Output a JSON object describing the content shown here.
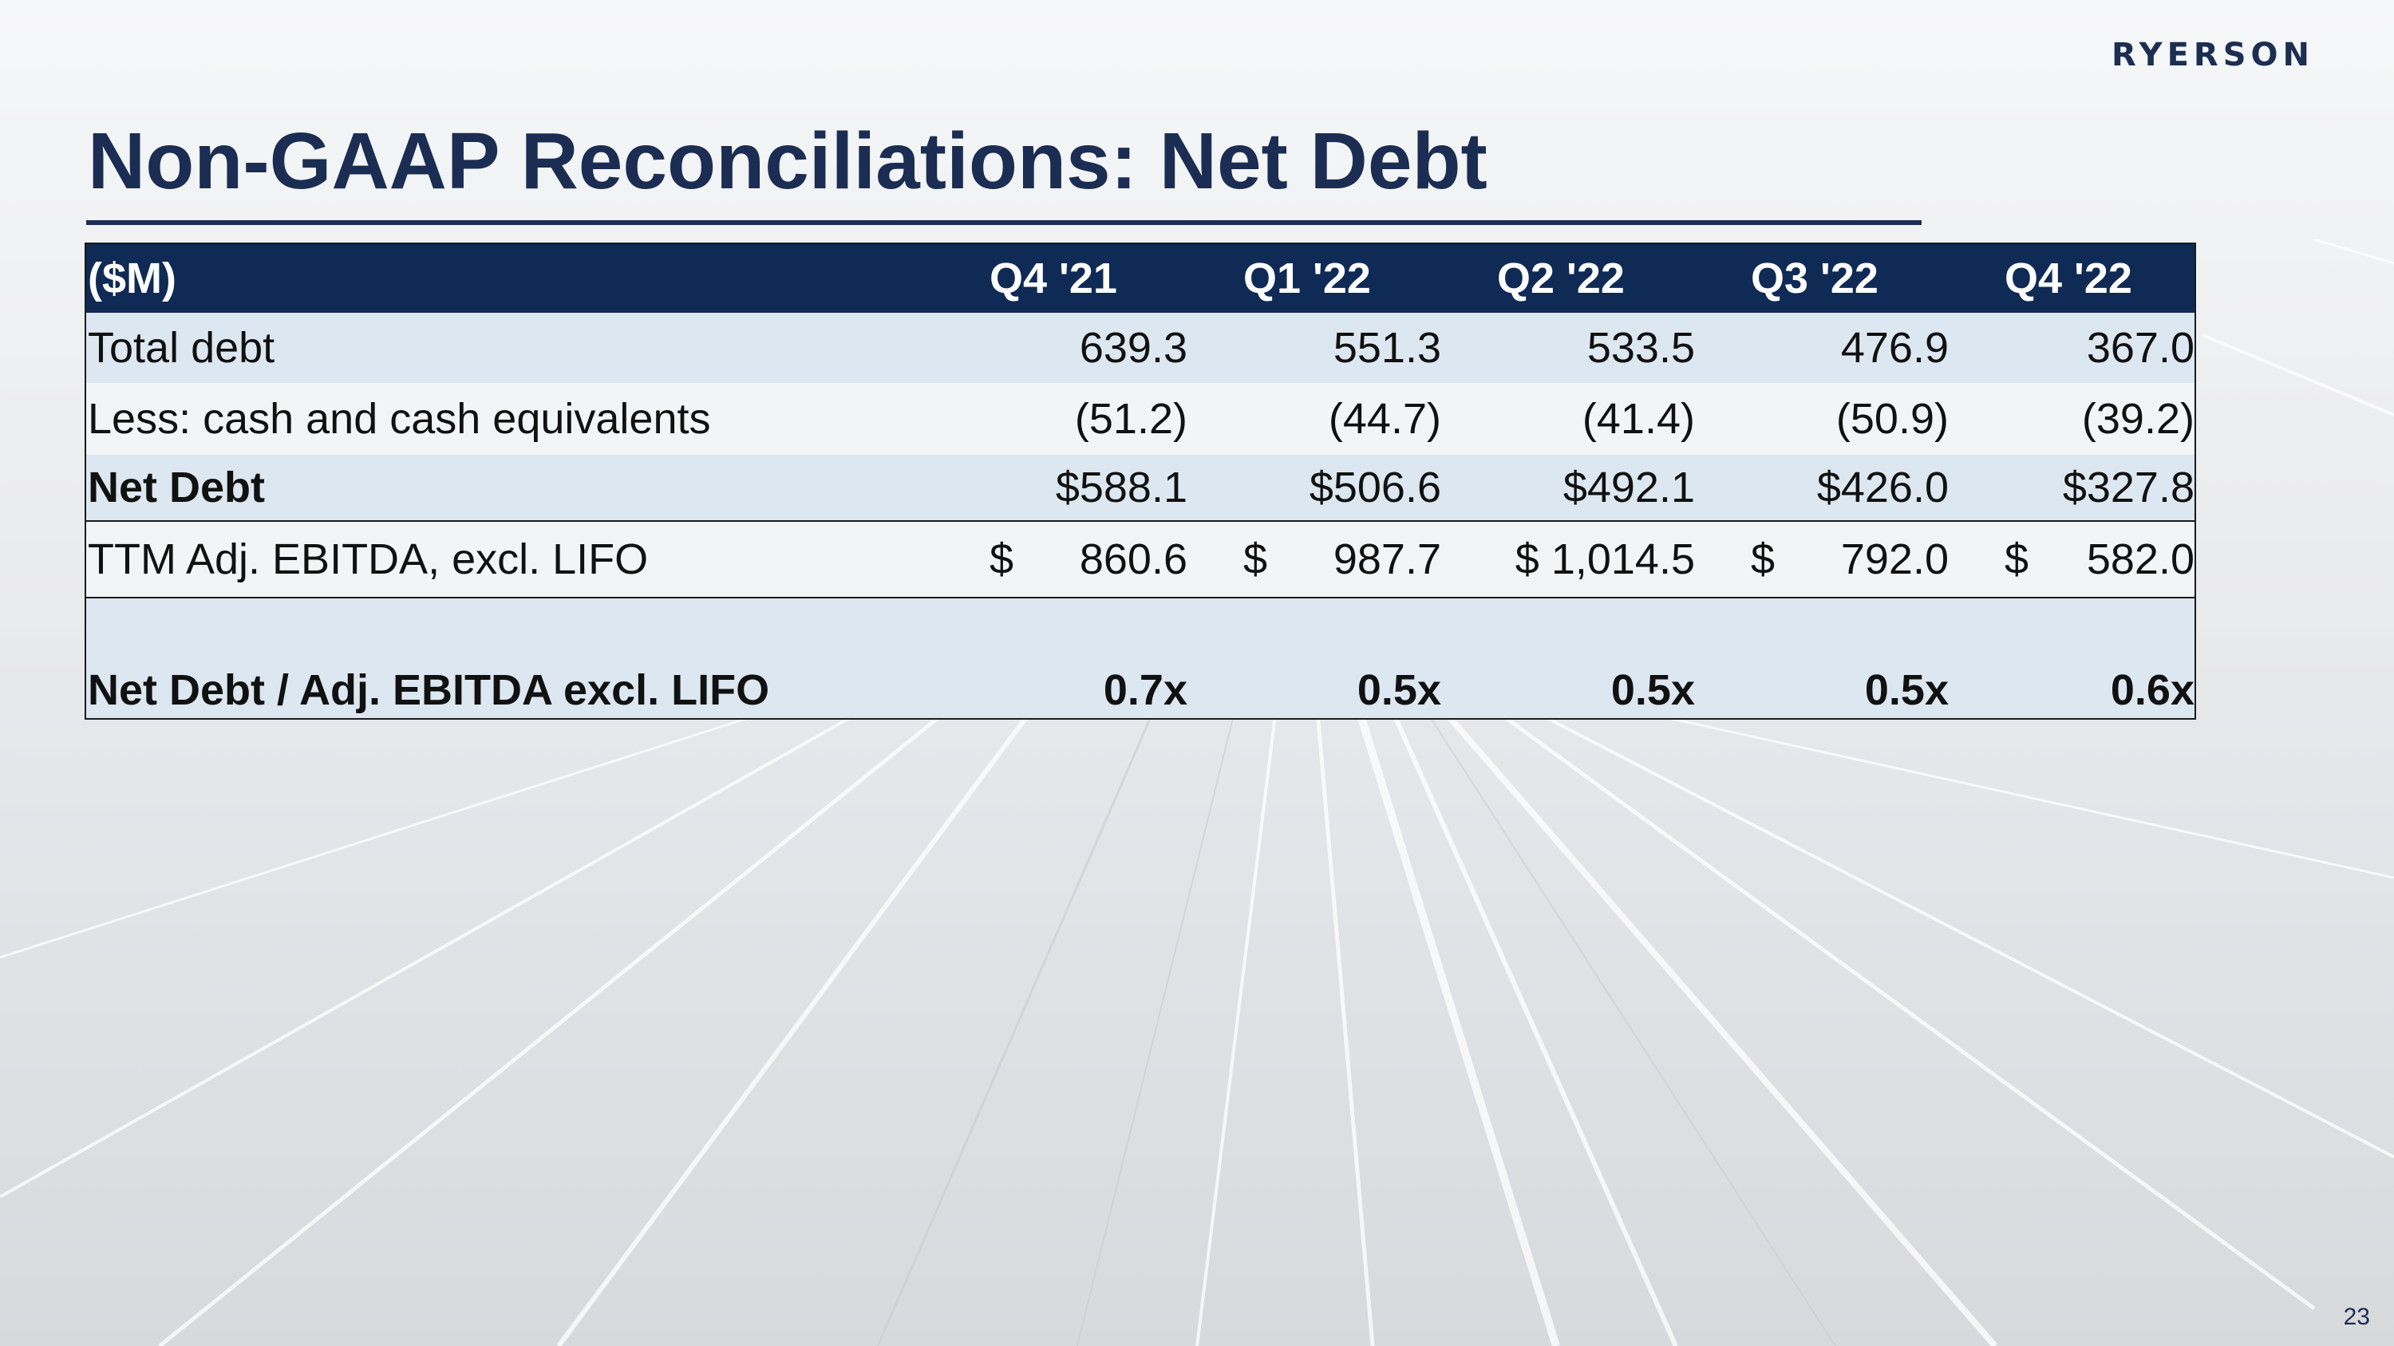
{
  "brand": {
    "logo_text": "RYERSON",
    "navy": "#1b2d52",
    "header_bg": "#0f2a55",
    "row_light": "#dde7f1"
  },
  "slide": {
    "title": "Non-GAAP Reconciliations: Net Debt",
    "page_number": "23"
  },
  "table": {
    "header": [
      "($M)",
      "Q4 '21",
      "Q1 '22",
      "Q2 '22",
      "Q3 '22",
      "Q4 '22"
    ],
    "rows": [
      {
        "label": "Total debt",
        "values": [
          "639.3",
          "551.3",
          "533.5",
          "476.9",
          "367.0"
        ]
      },
      {
        "label": "Less: cash and cash equivalents",
        "values": [
          "(51.2)",
          "(44.7)",
          "(41.4)",
          "(50.9)",
          "(39.2)"
        ]
      },
      {
        "label": "Net Debt",
        "values": [
          "$588.1",
          "$506.6",
          "$492.1",
          "$426.0",
          "$327.8"
        ]
      },
      {
        "label": "TTM Adj. EBITDA, excl. LIFO",
        "currency": [
          "$",
          "$",
          "$ 1,014.5",
          "$",
          "$"
        ],
        "values": [
          "860.6",
          "987.7",
          "",
          "792.0",
          "582.0"
        ]
      },
      {
        "label": "Net Debt / Adj. EBITDA excl. LIFO",
        "values": [
          "0.7x",
          "0.5x",
          "0.5x",
          "0.5x",
          "0.6x"
        ]
      }
    ]
  }
}
